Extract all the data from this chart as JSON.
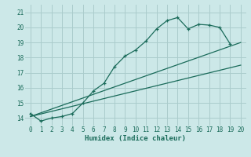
{
  "xlabel": "Humidex (Indice chaleur)",
  "bg_color": "#cce8e8",
  "grid_color": "#aacccc",
  "line_color": "#1a6b5a",
  "xlim": [
    -0.5,
    20.5
  ],
  "ylim": [
    13.5,
    21.5
  ],
  "xticks": [
    0,
    1,
    2,
    3,
    4,
    5,
    6,
    7,
    8,
    9,
    10,
    11,
    12,
    13,
    14,
    15,
    16,
    17,
    18,
    19,
    20
  ],
  "yticks": [
    14,
    15,
    16,
    17,
    18,
    19,
    20,
    21
  ],
  "curve1_x": [
    0,
    1,
    2,
    3,
    4,
    5,
    6,
    7,
    8,
    9,
    10,
    11,
    12,
    13,
    14,
    15,
    16,
    17,
    18,
    19
  ],
  "curve1_y": [
    14.3,
    13.8,
    14.0,
    14.1,
    14.3,
    15.0,
    15.8,
    16.3,
    17.4,
    18.1,
    18.5,
    19.1,
    19.9,
    20.45,
    20.65,
    19.9,
    20.2,
    20.15,
    20.0,
    18.9
  ],
  "line2_x": [
    0,
    20
  ],
  "line2_y": [
    14.1,
    17.5
  ],
  "line3_x": [
    0,
    20
  ],
  "line3_y": [
    14.1,
    19.0
  ]
}
